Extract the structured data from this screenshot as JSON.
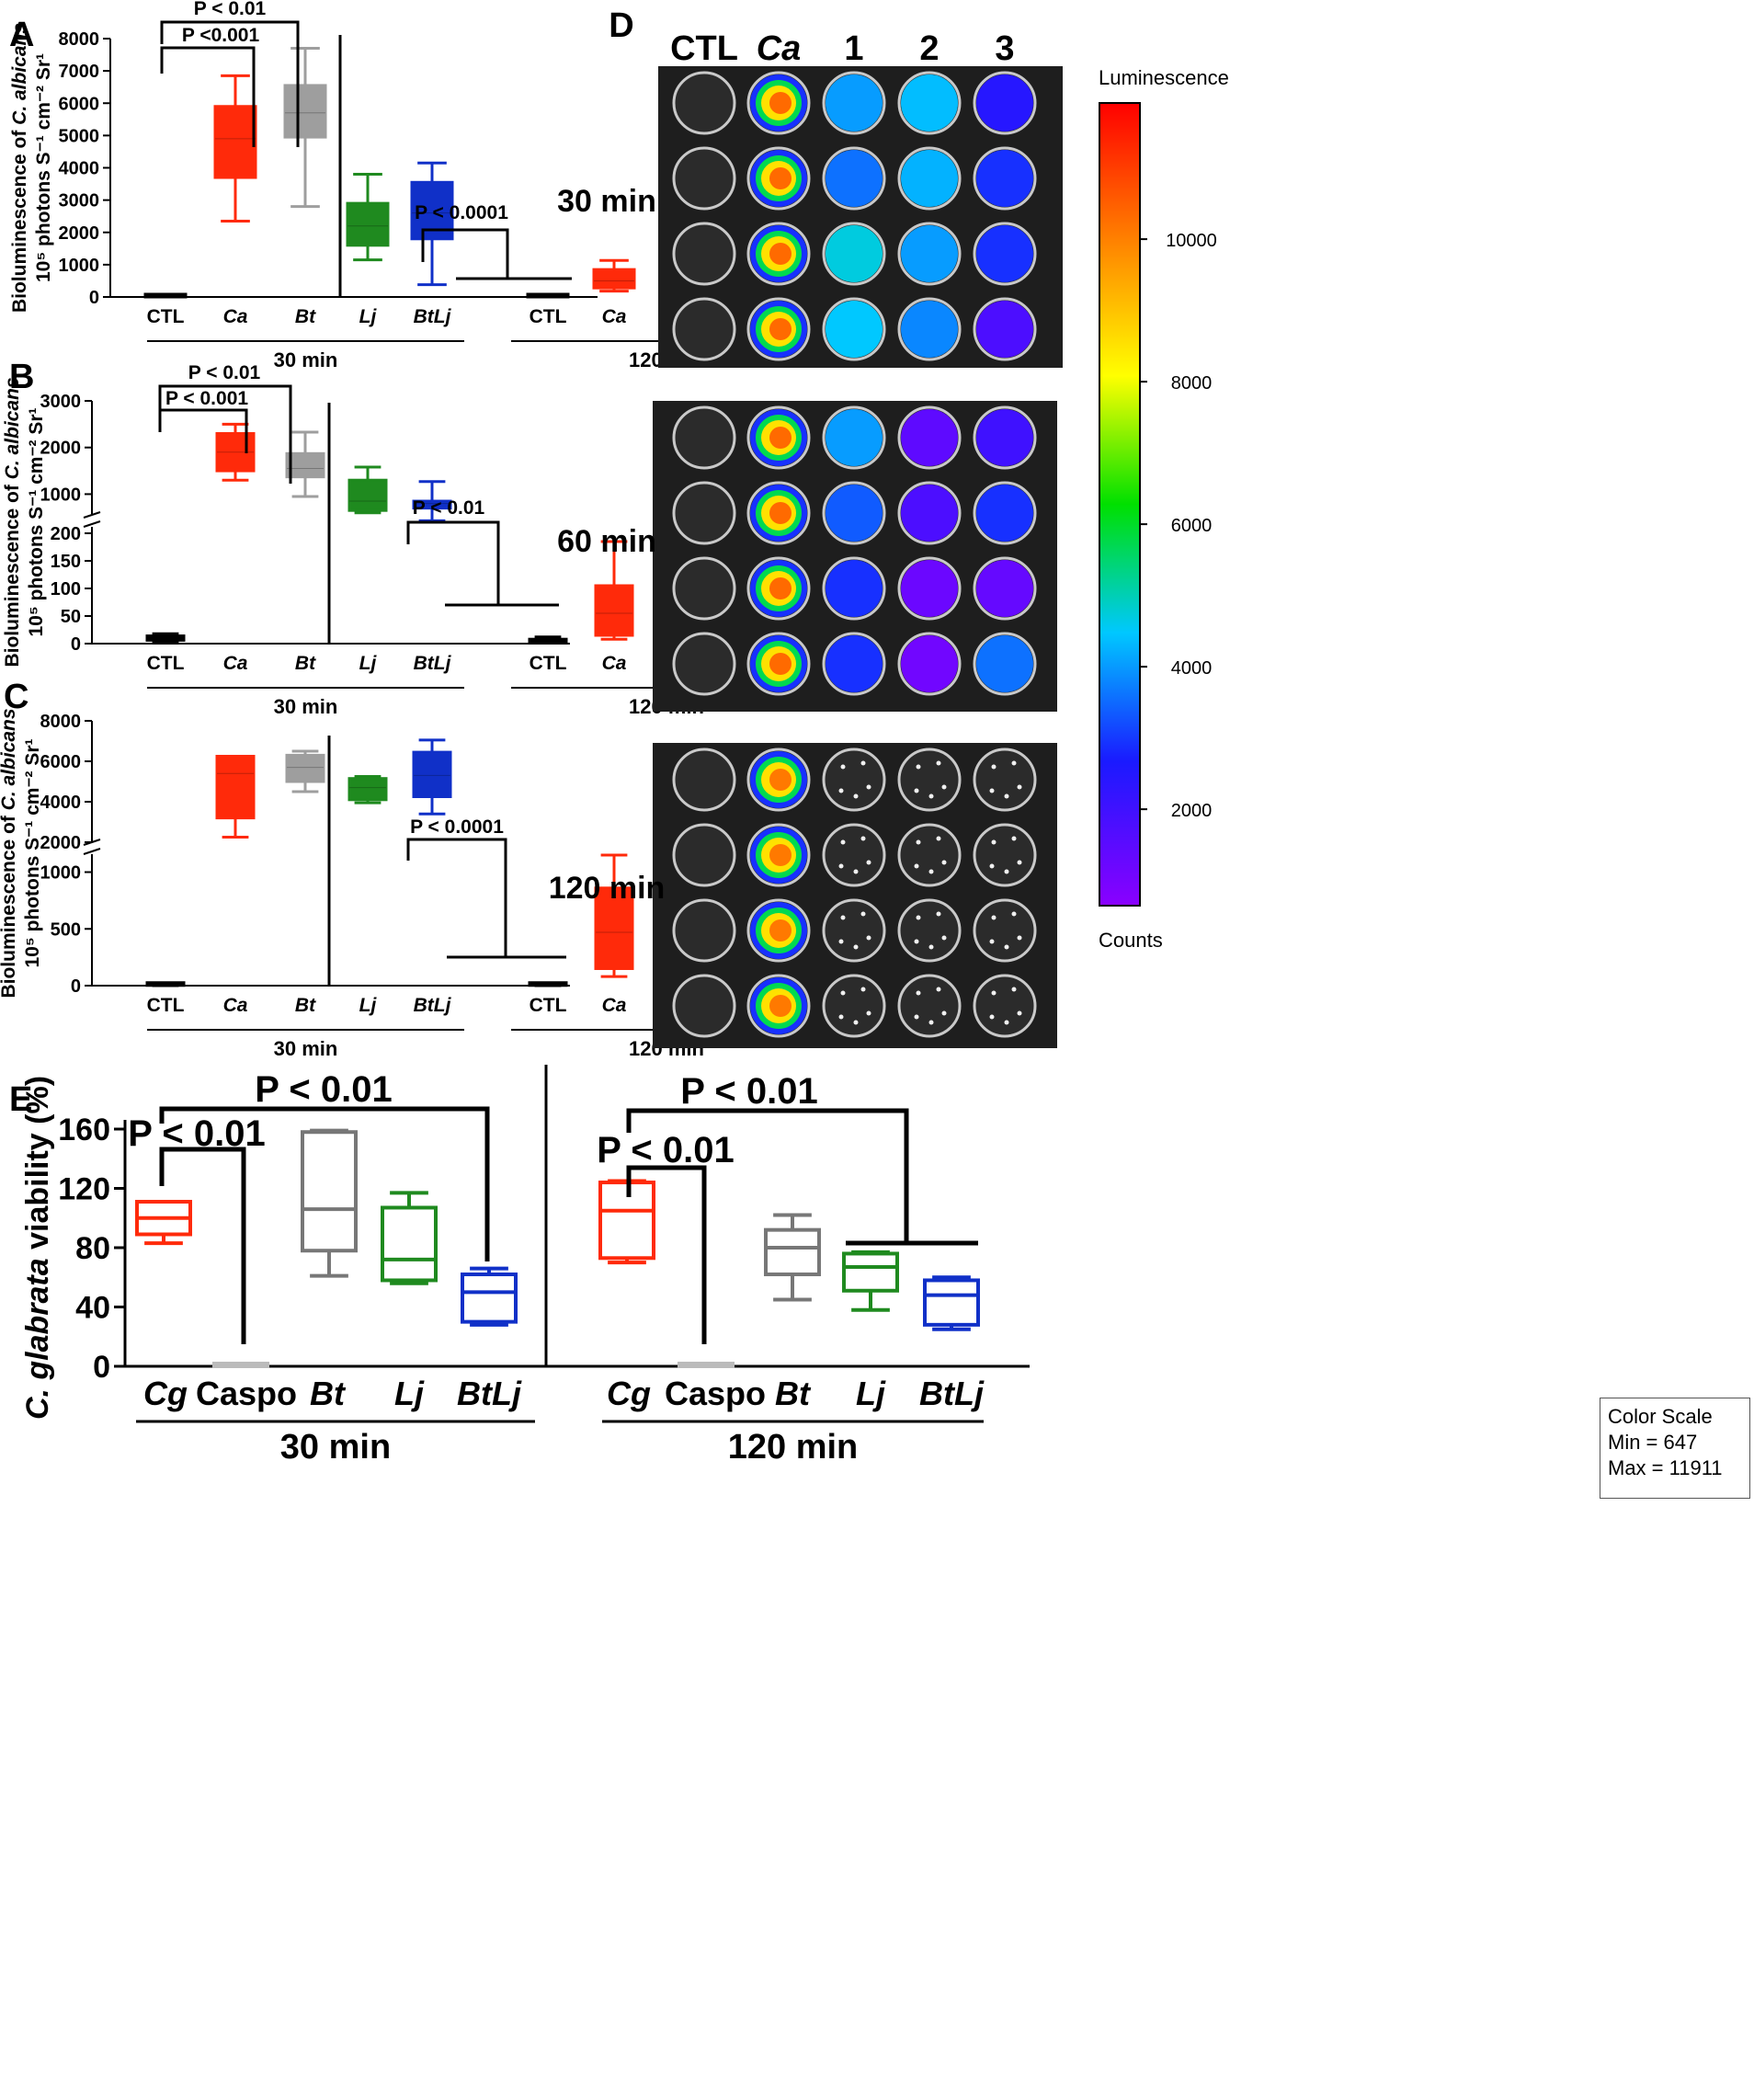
{
  "panel_labels": {
    "A": "A",
    "B": "B",
    "C": "C",
    "D": "D",
    "E": "E"
  },
  "colors": {
    "CTL": "#000000",
    "Ca": "#ff2a0a",
    "Bt": "#9e9e9e",
    "Lj": "#1f8a1f",
    "BtLj": "#1030c8",
    "Cg": "#ff2a0a",
    "Caspo": "#bbbbbb",
    "E_Bt": "#777777"
  },
  "ylabel_ABC": "Bioluminescence of C. albicans 10⁵ photons S⁻¹ cm⁻² Sr¹",
  "ylabel_E": "C. glabrata viability (%)",
  "chart_data": [
    {
      "id": "A",
      "type": "box",
      "groups": [
        "30 min",
        "120 min"
      ],
      "categories": [
        "CTL",
        "Ca",
        "Bt",
        "Lj",
        "BtLj"
      ],
      "yticks": [
        0,
        1000,
        2000,
        3000,
        4000,
        5000,
        6000,
        7000,
        8000
      ],
      "ylim": [
        0,
        8000
      ],
      "series": {
        "30 min": [
          {
            "cat": "CTL",
            "min": 0,
            "q1": 0,
            "med": 0,
            "q3": 0,
            "max": 0
          },
          {
            "cat": "Ca",
            "min": 2350,
            "q1": 3700,
            "med": 4900,
            "q3": 5900,
            "max": 6850
          },
          {
            "cat": "Bt",
            "min": 2800,
            "q1": 4950,
            "med": 5700,
            "q3": 6550,
            "max": 7700
          },
          {
            "cat": "Lj",
            "min": 1150,
            "q1": 1600,
            "med": 2200,
            "q3": 2900,
            "max": 3800
          },
          {
            "cat": "BtLj",
            "min": 380,
            "q1": 1800,
            "med": 2600,
            "q3": 3550,
            "max": 4150
          }
        ],
        "120 min": [
          {
            "cat": "CTL",
            "min": 0,
            "q1": 0,
            "med": 0,
            "q3": 0,
            "max": 0
          },
          {
            "cat": "Ca",
            "min": 180,
            "q1": 280,
            "med": 500,
            "q3": 850,
            "max": 1130
          },
          {
            "cat": "Bt",
            "min": 0,
            "q1": 15,
            "med": 50,
            "q3": 80,
            "max": 130
          },
          {
            "cat": "Lj",
            "min": 0,
            "q1": 0,
            "med": 5,
            "q3": 10,
            "max": 15
          },
          {
            "cat": "BtLj",
            "min": 20,
            "q1": 40,
            "med": 80,
            "q3": 110,
            "max": 160
          }
        ]
      },
      "annotations": [
        "P < 0.01",
        "P <0.001",
        "P < 0.0001"
      ]
    },
    {
      "id": "B",
      "type": "box",
      "groups": [
        "30 min",
        "120 min"
      ],
      "categories": [
        "CTL",
        "Ca",
        "Bt",
        "Lj",
        "BtLj"
      ],
      "yticks_lower": [
        0,
        50,
        100,
        150,
        200
      ],
      "yticks_upper": [
        1000,
        2000,
        3000
      ],
      "ylim_lower": [
        0,
        200
      ],
      "ylim_upper": [
        200,
        3000
      ],
      "series": {
        "30 min": [
          {
            "cat": "CTL",
            "min": 2,
            "q1": 6,
            "med": 10,
            "q3": 14,
            "max": 18
          },
          {
            "cat": "Ca",
            "min": 1300,
            "q1": 1500,
            "med": 1900,
            "q3": 2300,
            "max": 2500
          },
          {
            "cat": "Bt",
            "min": 950,
            "q1": 1370,
            "med": 1550,
            "q3": 1870,
            "max": 2330
          },
          {
            "cat": "Lj",
            "min": 600,
            "q1": 650,
            "med": 850,
            "q3": 1300,
            "max": 1580
          },
          {
            "cat": "BtLj",
            "min": 430,
            "q1": 700,
            "med": 800,
            "q3": 850,
            "max": 1270
          }
        ],
        "120 min": [
          {
            "cat": "CTL",
            "min": 1,
            "q1": 3,
            "med": 5,
            "q3": 8,
            "max": 12
          },
          {
            "cat": "Ca",
            "min": 8,
            "q1": 15,
            "med": 55,
            "q3": 105,
            "max": 185
          },
          {
            "cat": "Bt",
            "min": 0,
            "q1": 2,
            "med": 8,
            "q3": 15,
            "max": 57
          },
          {
            "cat": "Lj",
            "min": 3,
            "q1": 5,
            "med": 7,
            "q3": 9,
            "max": 11
          },
          {
            "cat": "BtLj",
            "min": 0,
            "q1": 2,
            "med": 4,
            "q3": 6,
            "max": 9
          }
        ]
      },
      "annotations": [
        "P < 0.01",
        "P < 0.001",
        "P < 0.01"
      ]
    },
    {
      "id": "C",
      "type": "box",
      "groups": [
        "30 min",
        "120 min"
      ],
      "categories": [
        "CTL",
        "Ca",
        "Bt",
        "Lj",
        "BtLj"
      ],
      "yticks_lower": [
        0,
        500,
        1000
      ],
      "yticks_upper": [
        2000,
        4000,
        6000,
        8000
      ],
      "ylim_lower": [
        0,
        1150
      ],
      "ylim_upper": [
        2000,
        8000
      ],
      "series": {
        "30 min": [
          {
            "cat": "CTL",
            "min": 0,
            "q1": 2,
            "med": 5,
            "q3": 8,
            "max": 12
          },
          {
            "cat": "Ca",
            "min": 2250,
            "q1": 3200,
            "med": 5400,
            "q3": 6250,
            "max": 6250
          },
          {
            "cat": "Bt",
            "min": 4500,
            "q1": 5000,
            "med": 5700,
            "q3": 6300,
            "max": 6500
          },
          {
            "cat": "Lj",
            "min": 3950,
            "q1": 4100,
            "med": 4700,
            "q3": 5150,
            "max": 5250
          },
          {
            "cat": "BtLj",
            "min": 3400,
            "q1": 4250,
            "med": 5300,
            "q3": 6450,
            "max": 7050
          }
        ],
        "120 min": [
          {
            "cat": "CTL",
            "min": 0,
            "q1": 2,
            "med": 4,
            "q3": 6,
            "max": 10
          },
          {
            "cat": "Ca",
            "min": 80,
            "q1": 150,
            "med": 470,
            "q3": 860,
            "max": 1150
          },
          {
            "cat": "Bt",
            "min": 10,
            "q1": 30,
            "med": 70,
            "q3": 100,
            "max": 115
          },
          {
            "cat": "Lj",
            "min": 0,
            "q1": 2,
            "med": 5,
            "q3": 10,
            "max": 115
          },
          {
            "cat": "BtLj",
            "min": 0,
            "q1": 10,
            "med": 20,
            "q3": 30,
            "max": 115
          }
        ]
      },
      "annotations": [
        "P < 0.0001"
      ]
    },
    {
      "id": "E",
      "type": "box",
      "groups": [
        "30 min",
        "120 min"
      ],
      "categories": [
        "Cg",
        "Caspo",
        "Bt",
        "Lj",
        "BtLj"
      ],
      "yticks": [
        0,
        40,
        80,
        120,
        160
      ],
      "ylim": [
        0,
        160
      ],
      "series": {
        "30 min": [
          {
            "cat": "Cg",
            "min": 83,
            "q1": 89,
            "med": 100,
            "q3": 111,
            "max": 111
          },
          {
            "cat": "Caspo",
            "min": 0,
            "q1": 0,
            "med": 0,
            "q3": 0,
            "max": 0
          },
          {
            "cat": "Bt",
            "min": 61,
            "q1": 78,
            "med": 106,
            "q3": 158,
            "max": 159
          },
          {
            "cat": "Lj",
            "min": 56,
            "q1": 58,
            "med": 72,
            "q3": 107,
            "max": 117
          },
          {
            "cat": "BtLj",
            "min": 28,
            "q1": 30,
            "med": 50,
            "q3": 62,
            "max": 66
          }
        ],
        "120 min": [
          {
            "cat": "Cg",
            "min": 70,
            "q1": 73,
            "med": 105,
            "q3": 124,
            "max": 125
          },
          {
            "cat": "Caspo",
            "min": 0,
            "q1": 0,
            "med": 0,
            "q3": 0,
            "max": 0
          },
          {
            "cat": "Bt",
            "min": 45,
            "q1": 62,
            "med": 80,
            "q3": 92,
            "max": 102
          },
          {
            "cat": "Lj",
            "min": 38,
            "q1": 51,
            "med": 67,
            "q3": 76,
            "max": 77
          },
          {
            "cat": "BtLj",
            "min": 25,
            "q1": 28,
            "med": 48,
            "q3": 58,
            "max": 60
          }
        ]
      },
      "annotations": [
        "P < 0.01",
        "P < 0.01",
        "P < 0.01",
        "P < 0.01"
      ]
    }
  ],
  "plate": {
    "column_labels": [
      "CTL",
      "Ca",
      "1",
      "2",
      "3"
    ],
    "row_labels": [
      "30 min",
      "60 min",
      "120 min"
    ],
    "wells": [
      [
        [
          0,
          0.86,
          0.3,
          0.33,
          0.16
        ],
        [
          0,
          0.86,
          0.26,
          0.32,
          0.2
        ],
        [
          0,
          0.86,
          0.36,
          0.3,
          0.2
        ],
        [
          0,
          0.86,
          0.34,
          0.28,
          0.1
        ]
      ],
      [
        [
          0,
          0.86,
          0.3,
          0.07,
          0.12
        ],
        [
          0,
          0.86,
          0.24,
          0.1,
          0.2
        ],
        [
          0,
          0.86,
          0.2,
          0.05,
          0.06
        ],
        [
          0,
          0.86,
          0.2,
          0.04,
          0.26
        ]
      ],
      [
        [
          0,
          0.84,
          0,
          0,
          0
        ],
        [
          0,
          0.84,
          0,
          0,
          0
        ],
        [
          0,
          0.84,
          0,
          0,
          0
        ],
        [
          0,
          0.84,
          0,
          0,
          0
        ]
      ]
    ],
    "colorbar_title": "Luminescence",
    "colorbar_ticks": [
      2000,
      4000,
      6000,
      8000,
      10000
    ],
    "colorbar_range": [
      647,
      11911
    ],
    "counts_label": "Counts",
    "color_scale": {
      "title": "Color Scale",
      "min": "Min = 647",
      "max": "Max = 11911"
    }
  }
}
